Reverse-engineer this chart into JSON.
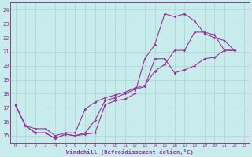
{
  "xlabel": "Windchill (Refroidissement éolien,°C)",
  "ylabel": "",
  "xlim": [
    -0.5,
    23.5
  ],
  "ylim": [
    14.5,
    24.5
  ],
  "xticks": [
    0,
    1,
    2,
    3,
    4,
    5,
    6,
    7,
    8,
    9,
    10,
    11,
    12,
    13,
    14,
    15,
    16,
    17,
    18,
    19,
    20,
    21,
    22,
    23
  ],
  "yticks": [
    15,
    16,
    17,
    18,
    19,
    20,
    21,
    22,
    23,
    24
  ],
  "bg_color": "#c8ecec",
  "line_color": "#993399",
  "grid_color": "#aadddd",
  "lines": [
    {
      "x": [
        0,
        1,
        2,
        3,
        4,
        5,
        6,
        7,
        8,
        9,
        10,
        11,
        12,
        13,
        14,
        15,
        16,
        17,
        18,
        19,
        20,
        21,
        22
      ],
      "y": [
        17.2,
        15.7,
        15.2,
        15.2,
        14.8,
        15.1,
        15.0,
        15.1,
        15.2,
        17.2,
        17.5,
        17.6,
        18.0,
        20.5,
        21.5,
        23.7,
        23.5,
        23.7,
        23.2,
        22.3,
        22.0,
        21.8,
        21.1
      ]
    },
    {
      "x": [
        0,
        1,
        2,
        3,
        4,
        5,
        6,
        7,
        8,
        9,
        10,
        11,
        12,
        13,
        14,
        15,
        16,
        17,
        18,
        19,
        20,
        21,
        22
      ],
      "y": [
        17.2,
        15.7,
        15.2,
        15.2,
        14.8,
        15.1,
        15.0,
        15.2,
        16.1,
        17.5,
        17.7,
        18.0,
        18.3,
        18.5,
        20.5,
        20.5,
        19.5,
        19.7,
        20.0,
        20.5,
        20.6,
        21.1,
        21.1
      ]
    },
    {
      "x": [
        0,
        1,
        2,
        3,
        4,
        5,
        6,
        7,
        8,
        9,
        10,
        11,
        12,
        13,
        14,
        15,
        16,
        17,
        18,
        19,
        20,
        21,
        22
      ],
      "y": [
        17.2,
        15.7,
        15.5,
        15.5,
        15.0,
        15.2,
        15.2,
        16.9,
        17.4,
        17.7,
        17.9,
        18.1,
        18.4,
        18.6,
        19.6,
        20.1,
        21.1,
        21.1,
        22.4,
        22.4,
        22.2,
        21.1,
        21.1
      ]
    }
  ]
}
